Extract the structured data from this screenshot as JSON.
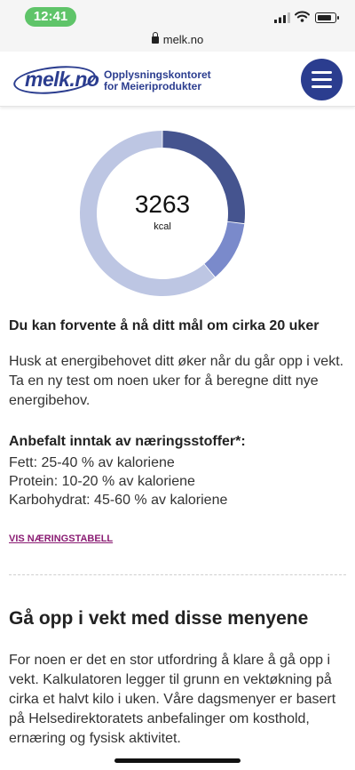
{
  "status_bar": {
    "time": "12:41"
  },
  "browser": {
    "url": "melk.no"
  },
  "header": {
    "logo_word": "melk.no",
    "logo_sub_line1": "Opplysningskontoret",
    "logo_sub_line2": "for Meieriprodukter",
    "icons": {
      "menu": "hamburger-icon",
      "lock": "lock-icon"
    }
  },
  "chart_data": {
    "type": "pie",
    "title": "",
    "center_value": "3263",
    "center_unit": "kcal",
    "slices": [
      {
        "value": 27,
        "color": "#45548f"
      },
      {
        "value": 12,
        "color": "#7a8acb"
      },
      {
        "value": 61,
        "color": "#bdc6e3"
      }
    ]
  },
  "goal": {
    "heading": "Du kan forvente å nå ditt mål om cirka 20 uker",
    "text": "Husk at energibehovet ditt øker når du går opp i vekt. Ta en ny test om noen uker for å beregne ditt nye energibehov."
  },
  "nutrients": {
    "heading": "Anbefalt inntak av næringsstoffer*:",
    "items": [
      "Fett: 25-40 % av kaloriene",
      "Protein: 10-20 % av kaloriene",
      "Karbohydrat: 45-60 % av kaloriene"
    ],
    "link_label": "VIS NÆRINGSTABELL"
  },
  "menus": {
    "heading": "Gå opp i vekt med disse menyene",
    "text": "For noen er det en stor utfordring å klare å gå opp i vekt. Kalkulatoren legger til grunn en vektøkning på cirka et halvt kilo i uken. Våre dagsmenyer er basert på Helsedirektoratets anbefalinger om kosthold, ernæring og fysisk aktivitet."
  },
  "colors": {
    "brand": "#2b3d8f",
    "link": "#8a1c73"
  }
}
